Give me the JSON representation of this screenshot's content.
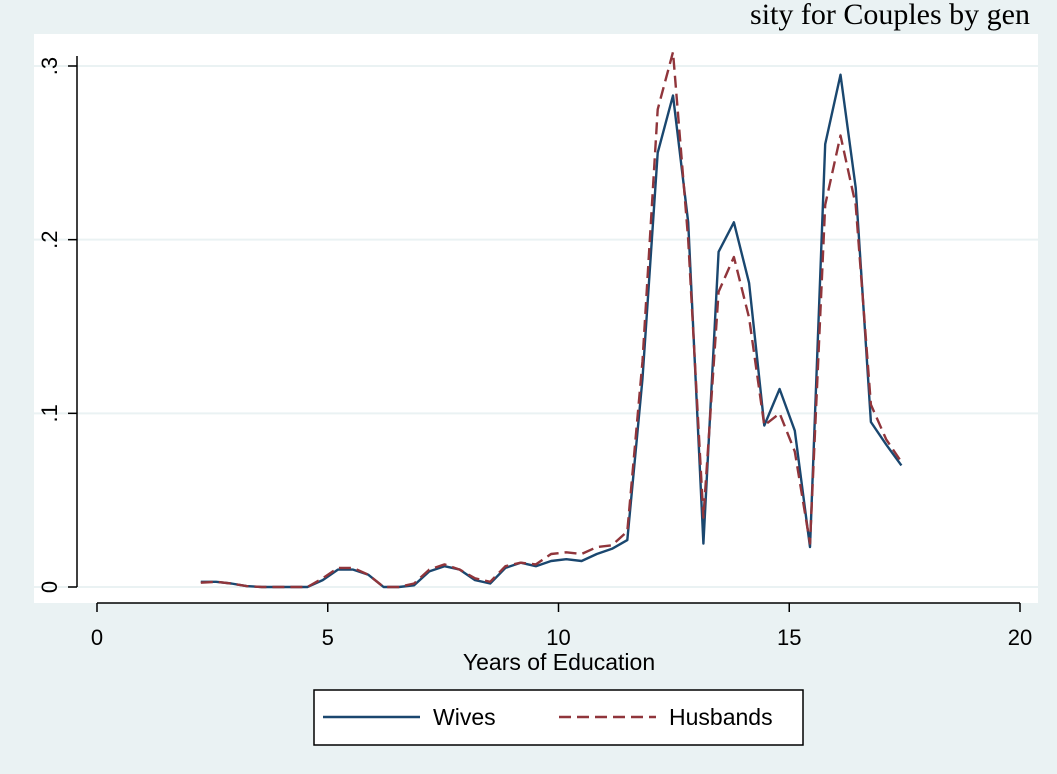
{
  "colors": {
    "outer_background": "#eaf2f3",
    "plot_background": "#ffffff",
    "grid": "#eaf2f3",
    "axis": "#000000",
    "wives": "#1a476f",
    "husbands": "#90353b"
  },
  "chart_data": {
    "type": "line",
    "title": "sity for Couples by gen",
    "xlabel": "Years of Education",
    "ylabel": "",
    "xlim": [
      0,
      20
    ],
    "ylim": [
      0,
      0.3
    ],
    "x_ticks": [
      0,
      5,
      10,
      15,
      20
    ],
    "x_tick_labels": [
      "0",
      "5",
      "10",
      "15",
      "20"
    ],
    "y_ticks": [
      0,
      0.1,
      0.2,
      0.3
    ],
    "y_tick_labels": [
      "0",
      ".1",
      ".2",
      ".3"
    ],
    "grid": true,
    "legend_position": "bottom",
    "x": [
      2.25,
      2.58,
      2.91,
      3.24,
      3.57,
      3.9,
      4.23,
      4.56,
      4.89,
      5.22,
      5.55,
      5.88,
      6.21,
      6.54,
      6.87,
      7.2,
      7.53,
      7.86,
      8.19,
      8.52,
      8.85,
      9.18,
      9.51,
      9.84,
      10.17,
      10.5,
      10.83,
      11.16,
      11.49,
      11.82,
      12.15,
      12.48,
      12.81,
      13.14,
      13.47,
      13.8,
      14.13,
      14.46,
      14.79,
      15.12,
      15.45,
      15.78,
      16.11,
      16.44,
      16.77,
      17.1,
      17.43
    ],
    "series": [
      {
        "name": "Wives",
        "color": "#1a476f",
        "dash": "solid",
        "values": [
          0.003,
          0.003,
          0.002,
          0.0005,
          0,
          0,
          0,
          0,
          0.004,
          0.01,
          0.01,
          0.007,
          0,
          0,
          0.001,
          0.009,
          0.012,
          0.01,
          0.004,
          0.002,
          0.011,
          0.014,
          0.012,
          0.015,
          0.016,
          0.015,
          0.019,
          0.022,
          0.027,
          0.12,
          0.25,
          0.283,
          0.21,
          0.025,
          0.193,
          0.21,
          0.175,
          0.093,
          0.114,
          0.09,
          0.023,
          0.255,
          0.295,
          0.23,
          0.095,
          0.082,
          0.07
        ]
      },
      {
        "name": "Husbands",
        "color": "#90353b",
        "dash": "dashed",
        "values": [
          0.0025,
          0.003,
          0.002,
          0.0005,
          0,
          0,
          0,
          0,
          0.005,
          0.011,
          0.011,
          0.007,
          0,
          0,
          0.002,
          0.01,
          0.013,
          0.01,
          0.005,
          0.003,
          0.012,
          0.014,
          0.013,
          0.019,
          0.02,
          0.019,
          0.023,
          0.024,
          0.032,
          0.13,
          0.275,
          0.308,
          0.2,
          0.04,
          0.17,
          0.19,
          0.155,
          0.093,
          0.1,
          0.078,
          0.025,
          0.22,
          0.26,
          0.22,
          0.105,
          0.085,
          0.072
        ]
      }
    ]
  }
}
